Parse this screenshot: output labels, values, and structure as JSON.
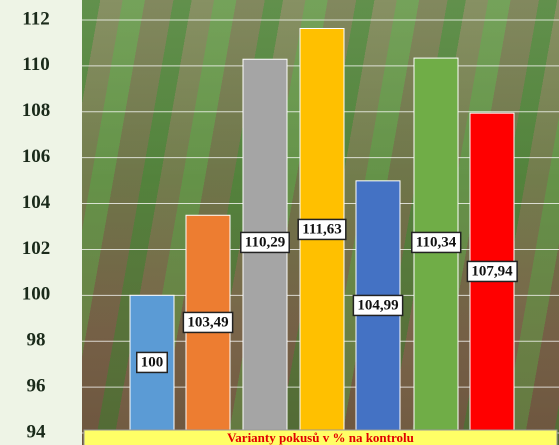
{
  "chart_data": {
    "type": "bar",
    "values": [
      100,
      103.49,
      110.29,
      111.63,
      104.99,
      110.34,
      107.94
    ],
    "value_labels": [
      "100",
      "103,49",
      "110,29",
      "111,63",
      "104,99",
      "110,34",
      "107,94"
    ],
    "colors": [
      "#5b9bd5",
      "#ed7d31",
      "#a5a5a5",
      "#ffc000",
      "#4472c4",
      "#70ad47",
      "#ff0000"
    ],
    "ylim": [
      94,
      112
    ],
    "yticks": [
      94,
      96,
      98,
      100,
      102,
      104,
      106,
      108,
      110,
      112
    ],
    "grid": true,
    "x_label": "Varianty pokusů v % na kontrolu"
  }
}
